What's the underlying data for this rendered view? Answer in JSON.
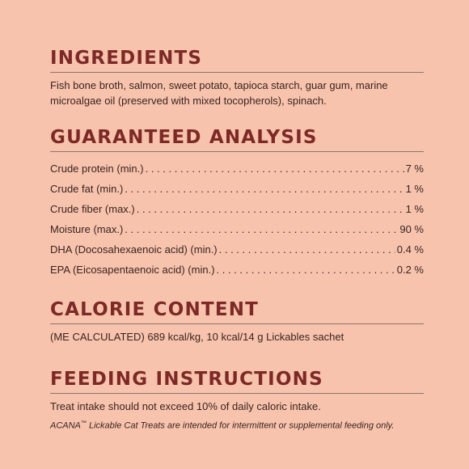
{
  "ingredients": {
    "heading": "Ingredients",
    "text": "Fish bone broth, salmon, sweet potato, tapioca starch, guar gum, marine microalgae oil (preserved with mixed tocopherols), spinach."
  },
  "analysis": {
    "heading": "Guaranteed Analysis",
    "rows": [
      {
        "label": "Crude protein (min.)",
        "value": "7 %"
      },
      {
        "label": "Crude fat (min.)",
        "value": "1 %"
      },
      {
        "label": "Crude fiber (max.)",
        "value": "1 %"
      },
      {
        "label": "Moisture (max.)",
        "value": "90 %"
      },
      {
        "label": "DHA (Docosahexaenoic acid) (min.)",
        "value": "0.4 %"
      },
      {
        "label": "EPA (Eicosapentaenoic acid) (min.)",
        "value": "0.2 %"
      }
    ]
  },
  "calorie": {
    "heading": "Calorie Content",
    "text": "(ME CALCULATED) 689 kcal/kg, 10 kcal/14 g Lickables sachet"
  },
  "feeding": {
    "heading": "Feeding Instructions",
    "text": "Treat intake should not exceed 10% of daily caloric intake.",
    "note_brand": "ACANA",
    "note_tm": "™",
    "note_text": " Lickable Cat Treats are intended for intermittent or supplemental feeding only."
  }
}
